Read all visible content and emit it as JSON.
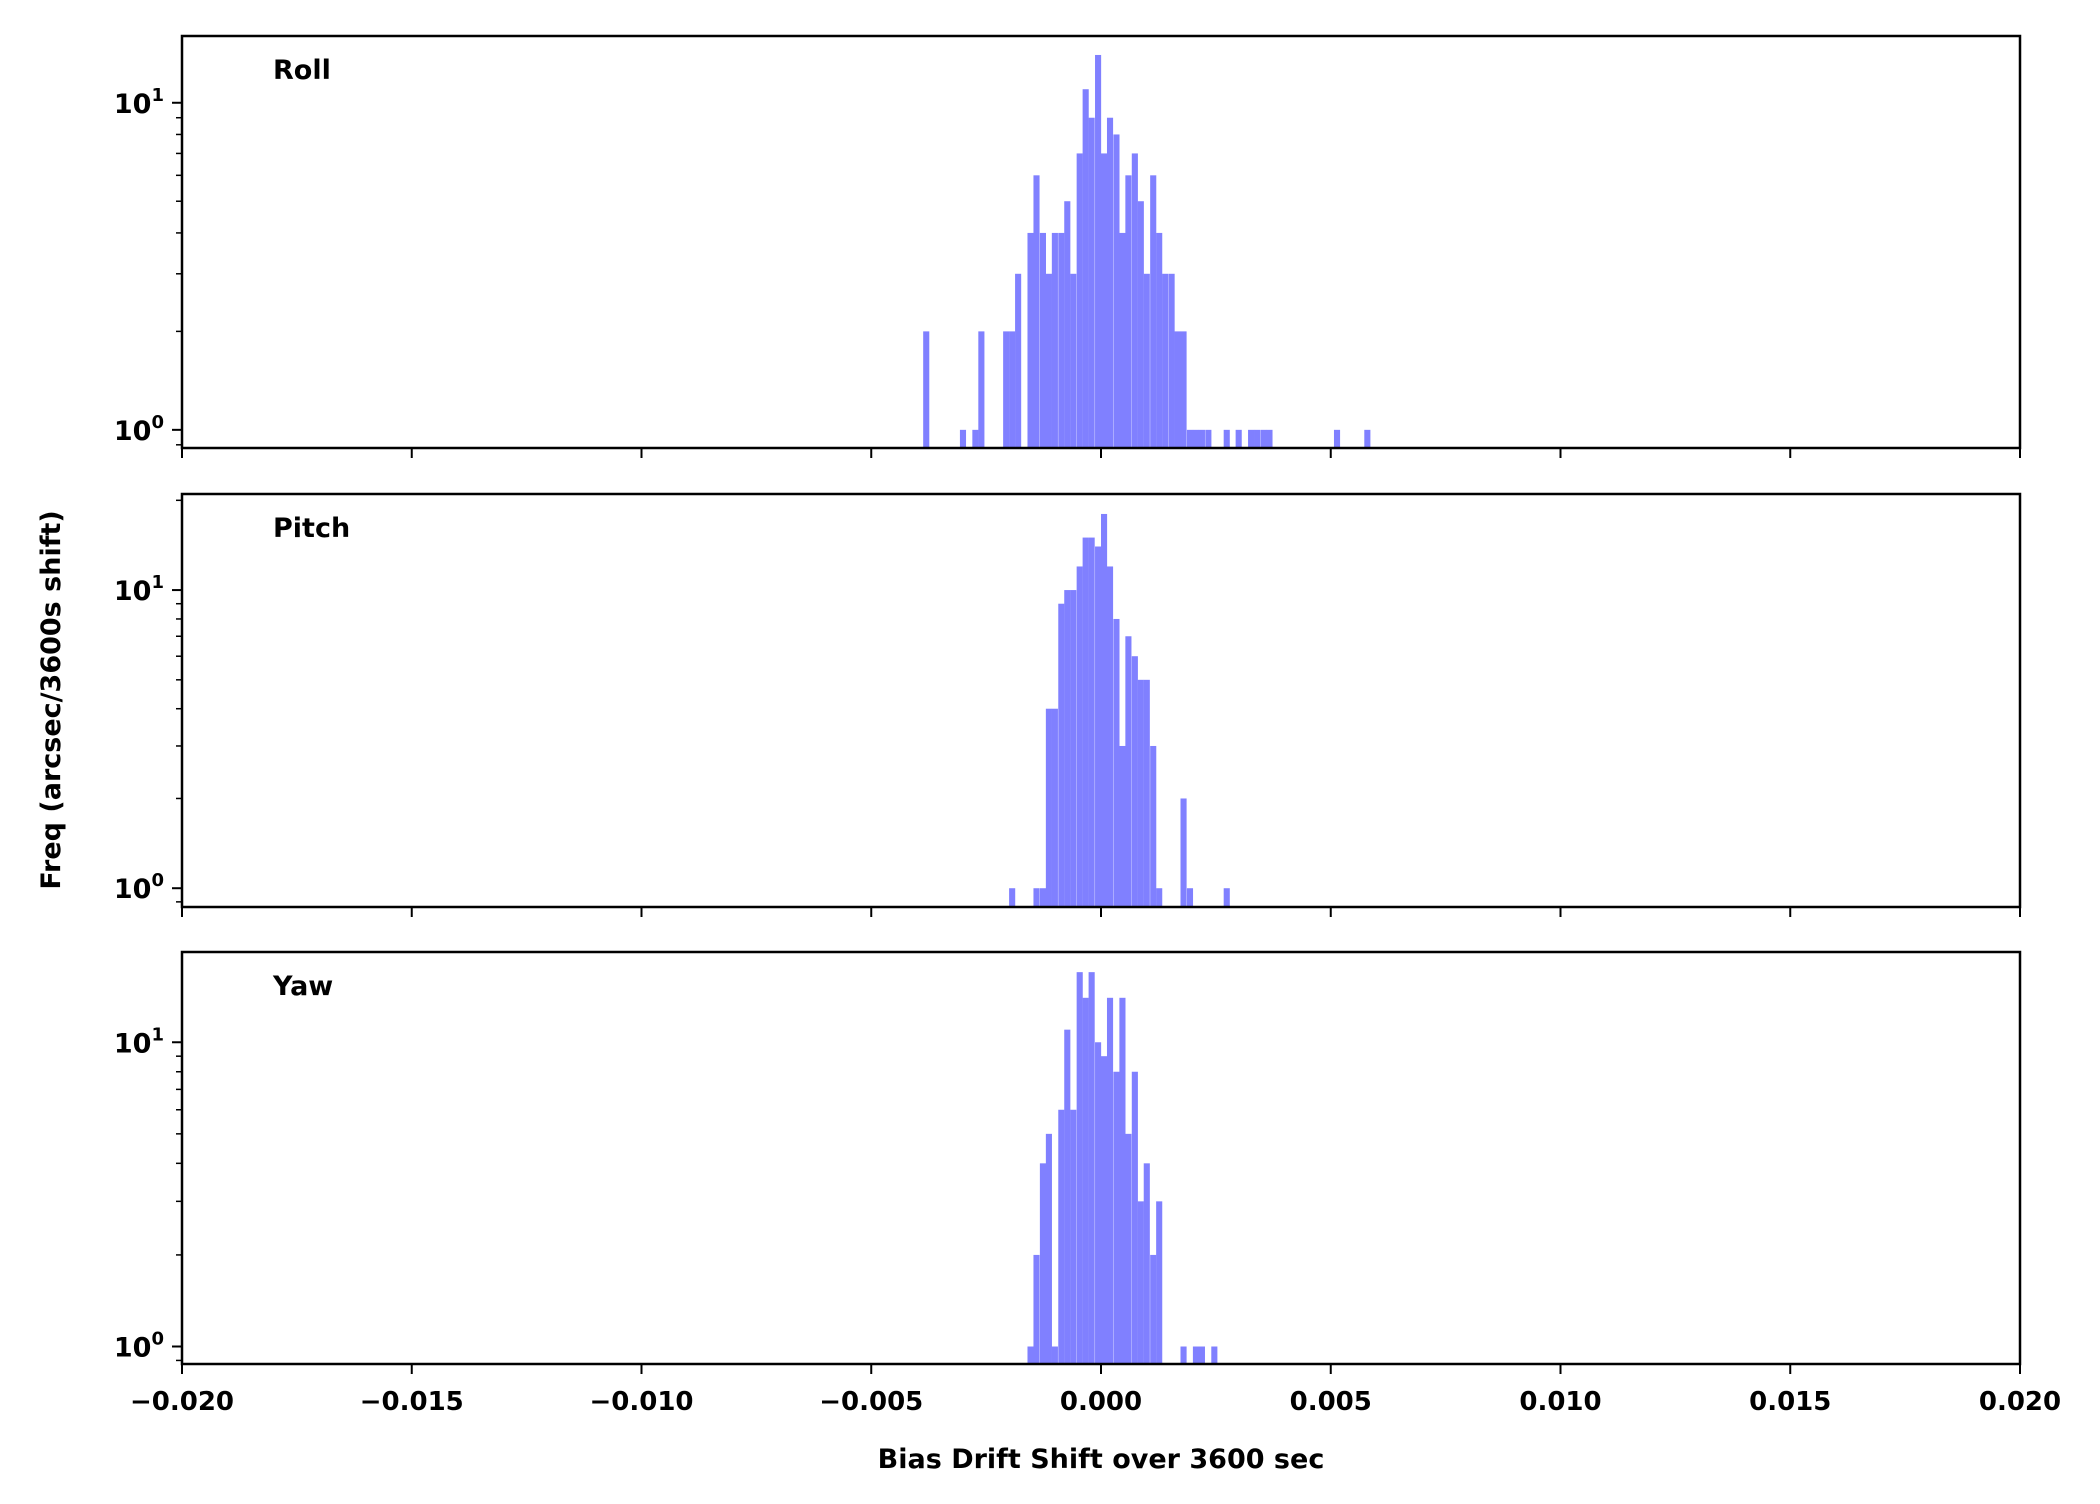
{
  "chart_data": {
    "type": "bar",
    "subtype": "histogram",
    "xlabel": "Bias Drift Shift over 3600 sec",
    "ylabel": "Freq (arcsec/3600s shift)",
    "xlim": [
      -0.02,
      0.02
    ],
    "xticks": [
      "-0.020",
      "-0.015",
      "-0.010",
      "-0.005",
      "0.000",
      "0.005",
      "0.010",
      "0.015",
      "0.020"
    ],
    "xtick_values": [
      -0.02,
      -0.015,
      -0.01,
      -0.005,
      0,
      0.005,
      0.01,
      0.015,
      0.02
    ],
    "yscale": "log",
    "bin_width": 0.000133,
    "bar_color": "#8080ff",
    "panels": [
      {
        "title": "Roll",
        "ylim": [
          0.88,
          16
        ],
        "yticks": [
          {
            "value": 1,
            "base": "10",
            "exp": "0"
          },
          {
            "value": 10,
            "base": "10",
            "exp": "1"
          }
        ],
        "bins": [
          [
            -0.00387,
            2
          ],
          [
            -0.00307,
            1
          ],
          [
            -0.0028,
            1
          ],
          [
            -0.00267,
            2
          ],
          [
            -0.00213,
            2
          ],
          [
            -0.002,
            2
          ],
          [
            -0.00187,
            3
          ],
          [
            -0.0016,
            4
          ],
          [
            -0.00147,
            6
          ],
          [
            -0.00133,
            4
          ],
          [
            -0.0012,
            3
          ],
          [
            -0.00107,
            4
          ],
          [
            -0.00093,
            4
          ],
          [
            -0.0008,
            5
          ],
          [
            -0.00067,
            3
          ],
          [
            -0.00053,
            7
          ],
          [
            -0.0004,
            11
          ],
          [
            -0.00027,
            9
          ],
          [
            -0.00013,
            14
          ],
          [
            0.0,
            7
          ],
          [
            0.00013,
            9
          ],
          [
            0.00027,
            8
          ],
          [
            0.0004,
            4
          ],
          [
            0.00053,
            6
          ],
          [
            0.00067,
            7
          ],
          [
            0.0008,
            5
          ],
          [
            0.00093,
            3
          ],
          [
            0.00107,
            6
          ],
          [
            0.0012,
            4
          ],
          [
            0.00133,
            3
          ],
          [
            0.00147,
            3
          ],
          [
            0.0016,
            2
          ],
          [
            0.00173,
            2
          ],
          [
            0.00187,
            1
          ],
          [
            0.002,
            1
          ],
          [
            0.00213,
            1
          ],
          [
            0.00227,
            1
          ],
          [
            0.00267,
            1
          ],
          [
            0.00293,
            1
          ],
          [
            0.0032,
            1
          ],
          [
            0.00333,
            1
          ],
          [
            0.00347,
            1
          ],
          [
            0.0036,
            1
          ],
          [
            0.00507,
            1
          ],
          [
            0.00573,
            1
          ]
        ]
      },
      {
        "title": "Pitch",
        "ylim": [
          0.865,
          21
        ],
        "yticks": [
          {
            "value": 1,
            "base": "10",
            "exp": "0"
          },
          {
            "value": 10,
            "base": "10",
            "exp": "1"
          }
        ],
        "bins": [
          [
            -0.002,
            1
          ],
          [
            -0.00147,
            1
          ],
          [
            -0.00133,
            1
          ],
          [
            -0.0012,
            4
          ],
          [
            -0.00107,
            4
          ],
          [
            -0.00093,
            9
          ],
          [
            -0.0008,
            10
          ],
          [
            -0.00067,
            10
          ],
          [
            -0.00053,
            12
          ],
          [
            -0.0004,
            15
          ],
          [
            -0.00027,
            15
          ],
          [
            -0.00013,
            14
          ],
          [
            0.0,
            18
          ],
          [
            0.00013,
            12
          ],
          [
            0.00027,
            8
          ],
          [
            0.0004,
            3
          ],
          [
            0.00053,
            7
          ],
          [
            0.00067,
            6
          ],
          [
            0.0008,
            5
          ],
          [
            0.00093,
            5
          ],
          [
            0.00107,
            3
          ],
          [
            0.0012,
            1
          ],
          [
            0.00173,
            2
          ],
          [
            0.00187,
            1
          ],
          [
            0.00267,
            1
          ]
        ]
      },
      {
        "title": "Yaw",
        "ylim": [
          0.876,
          19.8
        ],
        "yticks": [
          {
            "value": 1,
            "base": "10",
            "exp": "0"
          },
          {
            "value": 10,
            "base": "10",
            "exp": "1"
          }
        ],
        "bins": [
          [
            -0.0016,
            1
          ],
          [
            -0.00147,
            2
          ],
          [
            -0.00133,
            4
          ],
          [
            -0.0012,
            5
          ],
          [
            -0.00107,
            1
          ],
          [
            -0.00093,
            6
          ],
          [
            -0.0008,
            11
          ],
          [
            -0.00067,
            6
          ],
          [
            -0.00053,
            17
          ],
          [
            -0.0004,
            14
          ],
          [
            -0.00027,
            17
          ],
          [
            -0.00013,
            10
          ],
          [
            0.0,
            9
          ],
          [
            0.00013,
            14
          ],
          [
            0.00027,
            8
          ],
          [
            0.0004,
            14
          ],
          [
            0.00053,
            5
          ],
          [
            0.00067,
            8
          ],
          [
            0.0008,
            3
          ],
          [
            0.00093,
            4
          ],
          [
            0.00107,
            2
          ],
          [
            0.0012,
            3
          ],
          [
            0.00173,
            1
          ],
          [
            0.002,
            1
          ],
          [
            0.00213,
            1
          ],
          [
            0.0024,
            1
          ]
        ]
      }
    ]
  }
}
